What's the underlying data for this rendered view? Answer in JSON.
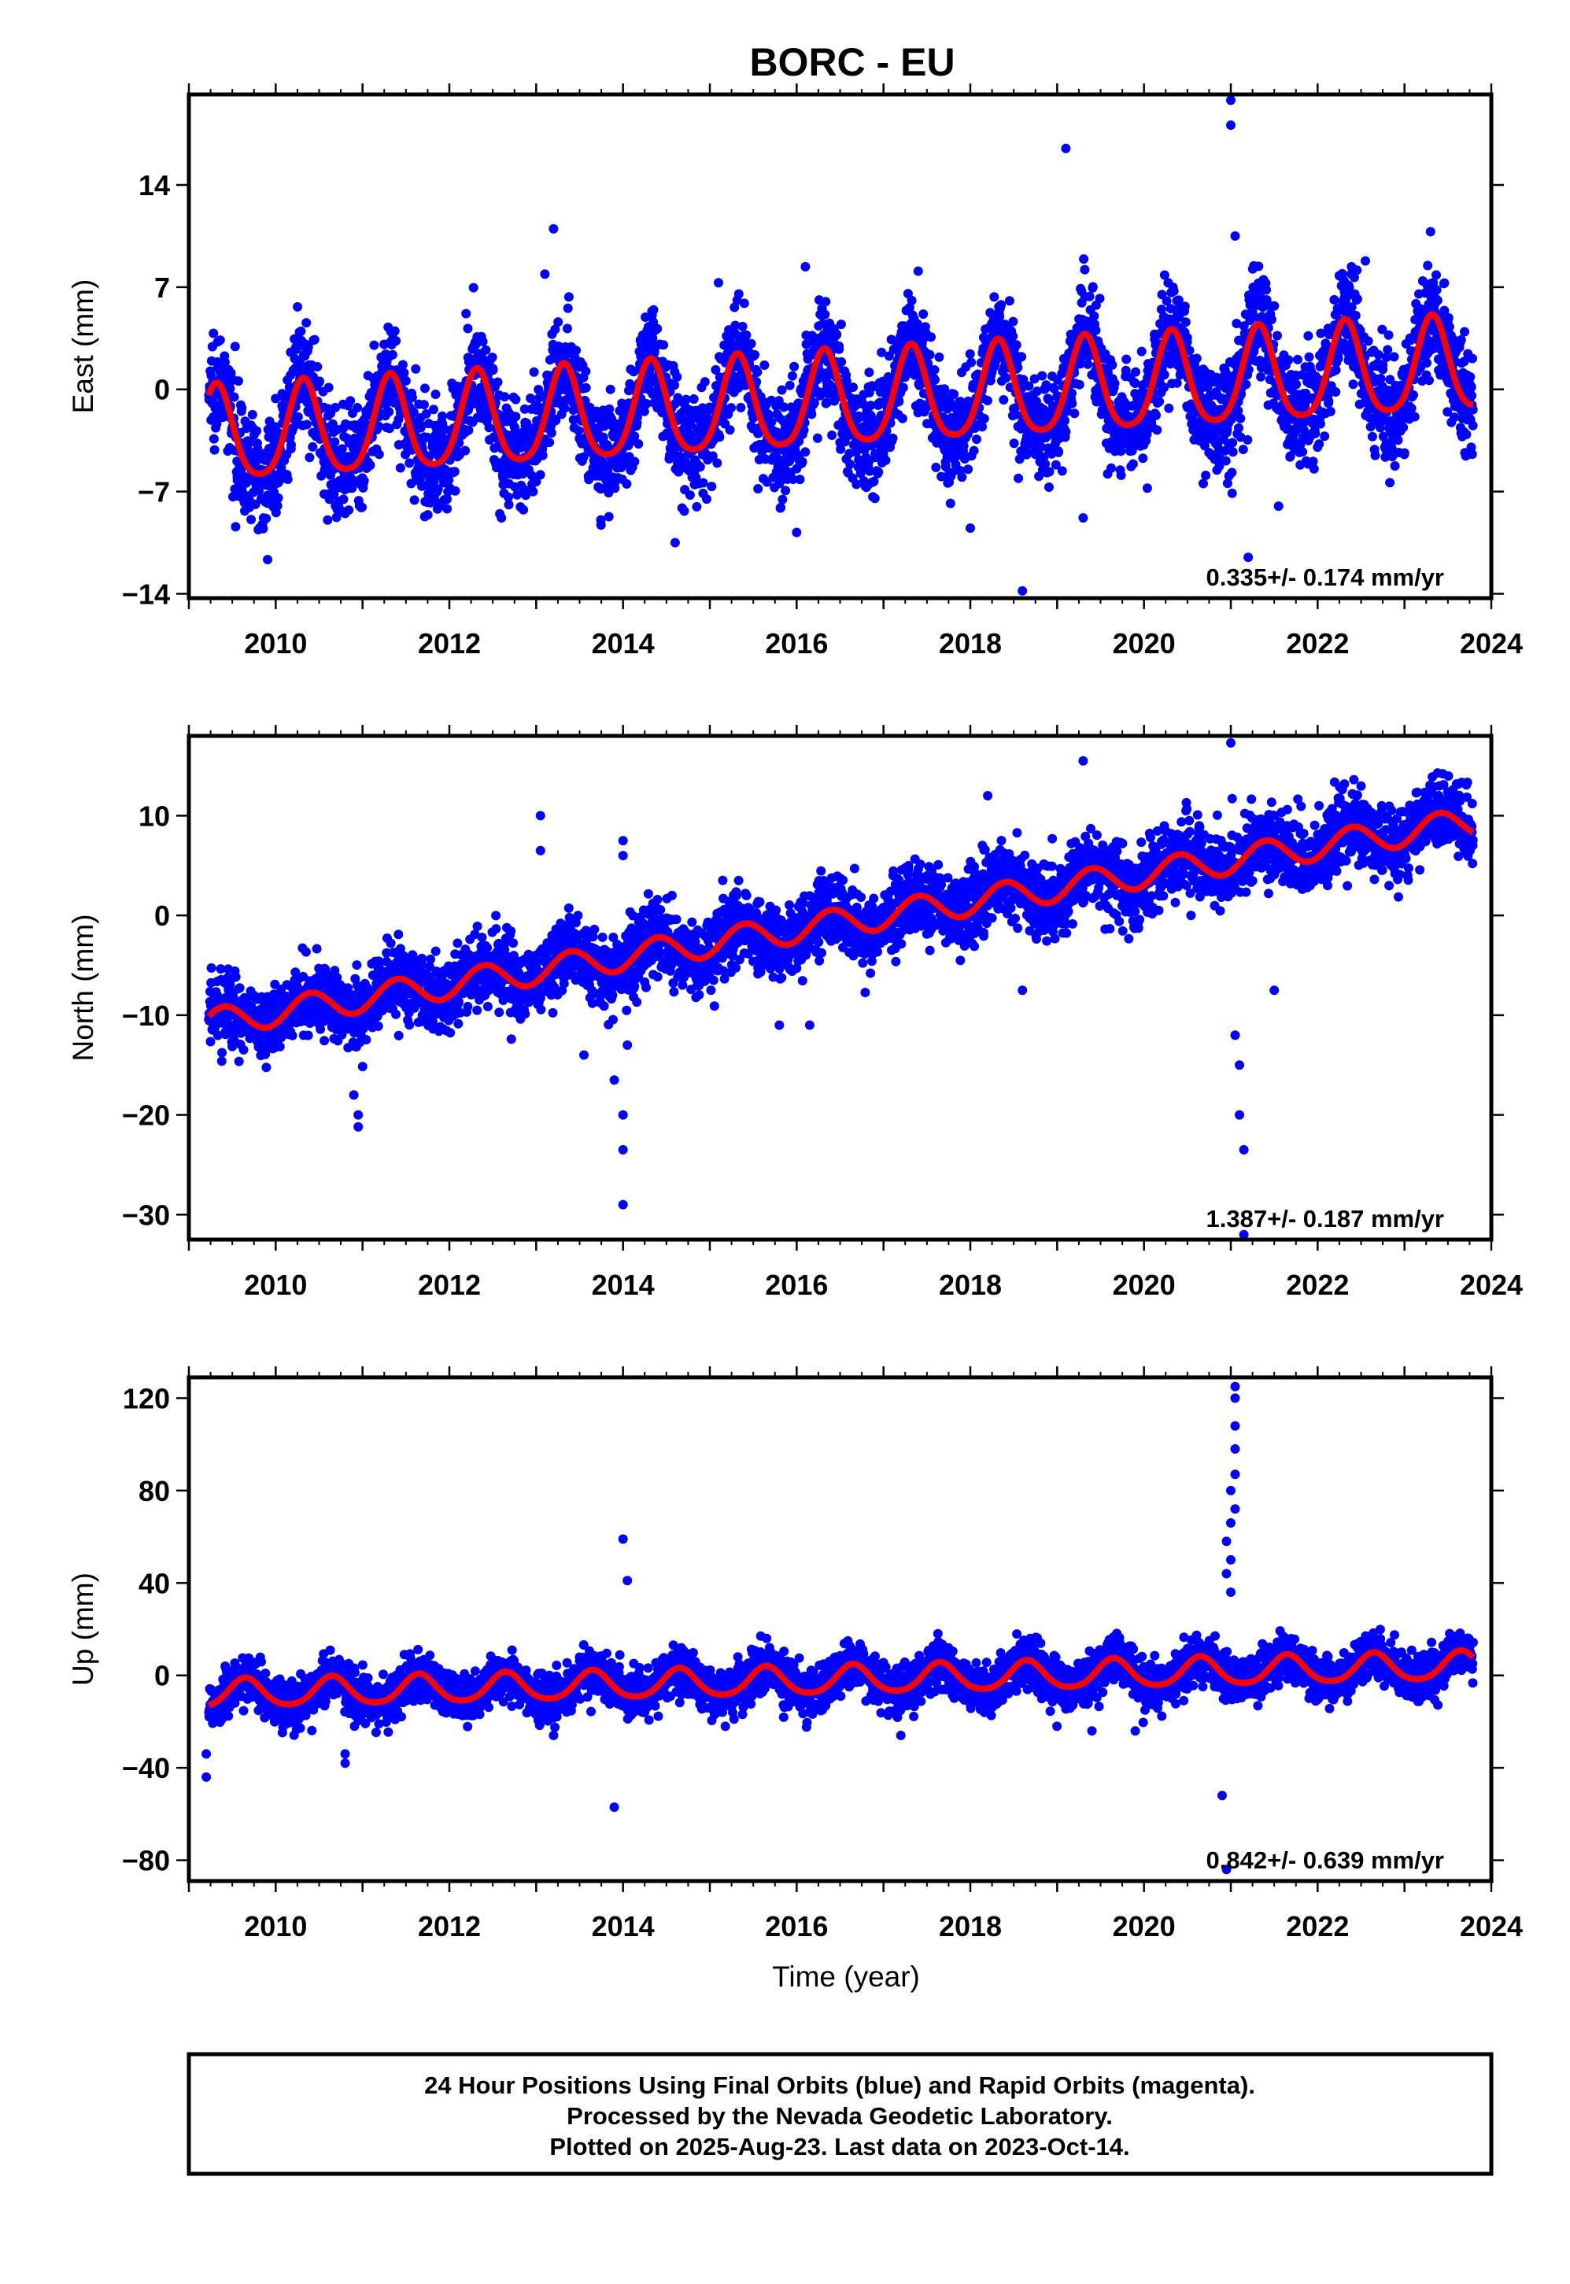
{
  "chart_data": [
    {
      "type": "scatter",
      "title": "BORC - EU",
      "ylabel": "East (mm)",
      "xlabel": "",
      "xlim": [
        2009.0,
        2024.0
      ],
      "ylim": [
        -14.3,
        20.2
      ],
      "xticks": [
        2010,
        2012,
        2014,
        2016,
        2018,
        2020,
        2022,
        2024
      ],
      "xtick_labels": [
        "2010",
        "2012",
        "2014",
        "2016",
        "2018",
        "2020",
        "2022",
        "2024"
      ],
      "yticks": [
        -14,
        -7,
        0,
        7,
        14
      ],
      "ytick_labels": [
        "−14",
        "−7",
        "0",
        "7",
        "14"
      ],
      "rate_label": "0.335+/- 0.174 mm/yr",
      "data_range": [
        2009.23,
        2023.79
      ],
      "model": {
        "offset": -0.9,
        "rate": 0.335,
        "t0": 2016.5,
        "amplitude": 3.2,
        "phase_peak": 0.32,
        "second_harmonic": 0.5
      },
      "scatter": {
        "noise_sd": 1.8,
        "point_color": "#0000ff",
        "model_color": "#ff0000"
      },
      "outliers": [
        [
          2021.0,
          19.8
        ],
        [
          2021.0,
          18.1
        ],
        [
          2019.1,
          16.5
        ],
        [
          2013.2,
          11.0
        ],
        [
          2021.05,
          10.5
        ],
        [
          2023.3,
          10.8
        ],
        [
          2022.55,
          8.8
        ],
        [
          2014.6,
          -10.5
        ],
        [
          2016.0,
          -9.8
        ],
        [
          2018.0,
          -9.5
        ],
        [
          2018.6,
          -13.8
        ],
        [
          2021.2,
          -11.5
        ],
        [
          2010.8,
          -8.5
        ],
        [
          2012.6,
          -8.8
        ],
        [
          2019.3,
          -8.8
        ],
        [
          2021.55,
          -8.0
        ],
        [
          2015.1,
          7.3
        ],
        [
          2017.4,
          8.1
        ],
        [
          2016.1,
          8.4
        ],
        [
          2013.1,
          7.9
        ]
      ]
    },
    {
      "type": "scatter",
      "title": "",
      "ylabel": "North (mm)",
      "xlabel": "",
      "xlim": [
        2009.0,
        2024.0
      ],
      "ylim": [
        -32.5,
        18.0
      ],
      "xticks": [
        2010,
        2012,
        2014,
        2016,
        2018,
        2020,
        2022,
        2024
      ],
      "xtick_labels": [
        "2010",
        "2012",
        "2014",
        "2016",
        "2018",
        "2020",
        "2022",
        "2024"
      ],
      "yticks": [
        -30,
        -20,
        -10,
        0,
        10
      ],
      "ytick_labels": [
        "−30",
        "−20",
        "−10",
        "0",
        "10"
      ],
      "rate_label": "1.387+/- 0.187 mm/yr",
      "data_range": [
        2009.23,
        2023.79
      ],
      "model": {
        "offset": -0.7,
        "rate": 1.387,
        "t0": 2016.5,
        "amplitude": 1.4,
        "phase_peak": 0.4,
        "second_harmonic": 0.0
      },
      "scatter": {
        "noise_sd": 1.8,
        "point_color": "#0000ff",
        "model_color": "#ff0000"
      },
      "outliers": [
        [
          2021.0,
          17.3
        ],
        [
          2019.3,
          15.5
        ],
        [
          2013.05,
          10.0
        ],
        [
          2013.05,
          6.5
        ],
        [
          2014.0,
          7.5
        ],
        [
          2014.0,
          6.0
        ],
        [
          2010.9,
          -18.0
        ],
        [
          2010.95,
          -20.0
        ],
        [
          2010.95,
          -21.2
        ],
        [
          2014.0,
          -20.0
        ],
        [
          2014.0,
          -23.5
        ],
        [
          2014.0,
          -29.0
        ],
        [
          2013.9,
          -16.5
        ],
        [
          2014.05,
          -13.0
        ],
        [
          2021.05,
          -12.0
        ],
        [
          2021.1,
          -15.0
        ],
        [
          2021.1,
          -20.0
        ],
        [
          2021.15,
          -23.5
        ],
        [
          2021.15,
          -32.0
        ],
        [
          2021.5,
          -7.5
        ],
        [
          2015.8,
          -11.0
        ],
        [
          2016.15,
          -11.0
        ],
        [
          2013.55,
          -14.0
        ],
        [
          2018.2,
          12.0
        ],
        [
          2018.6,
          -7.5
        ]
      ]
    },
    {
      "type": "scatter",
      "title": "",
      "ylabel": "Up (mm)",
      "xlabel": "Time (year)",
      "xlim": [
        2009.0,
        2024.0
      ],
      "ylim": [
        -89.0,
        129.0
      ],
      "xticks": [
        2010,
        2012,
        2014,
        2016,
        2018,
        2020,
        2022,
        2024
      ],
      "xtick_labels": [
        "2010",
        "2012",
        "2014",
        "2016",
        "2018",
        "2020",
        "2022",
        "2024"
      ],
      "yticks": [
        -80,
        -40,
        0,
        40,
        80,
        120
      ],
      "ytick_labels": [
        "−80",
        "−40",
        "0",
        "40",
        "80",
        "120"
      ],
      "rate_label": "0.842+/- 0.639 mm/yr",
      "data_range": [
        2009.23,
        2023.79
      ],
      "model": {
        "offset": -2.0,
        "rate": 0.842,
        "t0": 2016.5,
        "amplitude": 6.0,
        "phase_peak": 0.65,
        "second_harmonic": 0.4
      },
      "scatter": {
        "noise_sd": 5.0,
        "point_color": "#0000ff",
        "model_color": "#ff0000"
      },
      "outliers": [
        [
          2021.05,
          125.0
        ],
        [
          2021.05,
          120.0
        ],
        [
          2021.05,
          108.0
        ],
        [
          2021.05,
          98.0
        ],
        [
          2021.05,
          87.0
        ],
        [
          2021.0,
          80.0
        ],
        [
          2021.05,
          72.0
        ],
        [
          2021.0,
          66.0
        ],
        [
          2020.95,
          58.0
        ],
        [
          2021.0,
          50.0
        ],
        [
          2020.95,
          44.0
        ],
        [
          2021.0,
          36.0
        ],
        [
          2014.0,
          59.0
        ],
        [
          2014.05,
          41.0
        ],
        [
          2009.2,
          -44.0
        ],
        [
          2009.2,
          -34.0
        ],
        [
          2010.8,
          -38.0
        ],
        [
          2010.8,
          -34.0
        ],
        [
          2013.9,
          -57.0
        ],
        [
          2020.9,
          -52.0
        ],
        [
          2020.95,
          -84.0
        ],
        [
          2017.2,
          -26.0
        ],
        [
          2019.4,
          -24.0
        ],
        [
          2019.9,
          -24.0
        ],
        [
          2013.2,
          -26.0
        ]
      ]
    }
  ],
  "footer": {
    "line1": "24 Hour Positions Using Final Orbits (blue) and Rapid Orbits (magenta).",
    "line2": "Processed by the Nevada Geodetic Laboratory.",
    "line3": "Plotted on 2025-Aug-23. Last data on 2023-Oct-14."
  }
}
